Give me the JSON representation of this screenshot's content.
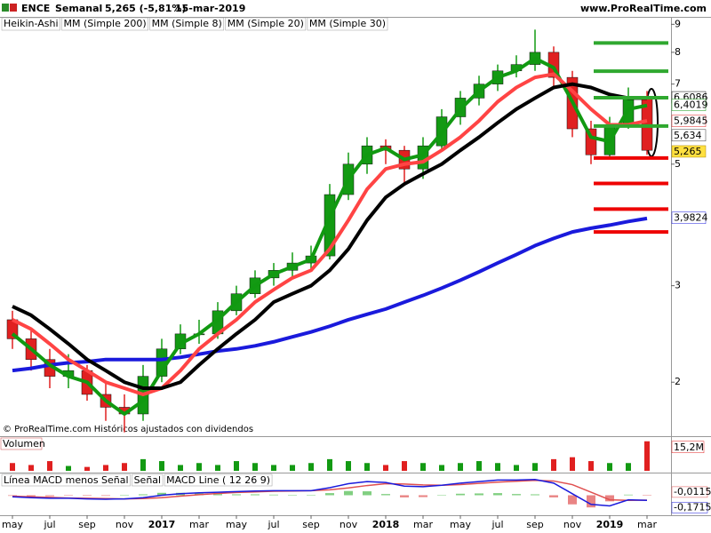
{
  "header": {
    "symbol": "ENCE",
    "period": "Semanal",
    "quote": "5,265 (-5,81%)",
    "date": "15-mar-2019",
    "site": "www.ProRealTime.com"
  },
  "footnote": "© ProRealTime.com  Históricos ajustados con dividendos",
  "chart_data": [
    {
      "type": "candlestick",
      "log_scale": true,
      "ylim": [
        1.6,
        9.25
      ],
      "yticks": [
        2,
        3,
        5,
        7,
        8,
        9
      ],
      "candles": {
        "name": "Heikin-Ashi",
        "up_color": "#139a13",
        "down_color": "#e02020",
        "open": [
          2.6,
          2.4,
          2.2,
          2.05,
          2.1,
          1.9,
          1.8,
          1.75,
          2.05,
          2.3,
          2.45,
          2.45,
          2.7,
          2.9,
          3.1,
          3.2,
          3.3,
          3.4,
          4.4,
          5.0,
          5.4,
          5.3,
          4.9,
          5.4,
          6.1,
          6.6,
          7.0,
          7.4,
          7.6,
          8.0,
          7.2,
          5.8,
          5.2,
          5.9,
          6.6
        ],
        "high": [
          2.7,
          2.5,
          2.3,
          2.25,
          2.15,
          2.0,
          1.9,
          2.15,
          2.4,
          2.55,
          2.6,
          2.8,
          3.0,
          3.2,
          3.3,
          3.45,
          3.55,
          4.6,
          5.25,
          5.6,
          5.55,
          5.4,
          5.6,
          6.3,
          6.8,
          7.25,
          7.6,
          7.9,
          8.8,
          8.2,
          7.4,
          6.0,
          6.1,
          6.9,
          6.8
        ],
        "low": [
          2.3,
          2.1,
          1.95,
          1.95,
          1.85,
          1.7,
          1.62,
          1.7,
          2.0,
          2.25,
          2.35,
          2.4,
          2.65,
          2.85,
          3.0,
          3.1,
          3.2,
          3.35,
          4.3,
          4.8,
          5.0,
          4.6,
          4.7,
          5.3,
          5.9,
          6.4,
          6.8,
          7.2,
          7.4,
          6.9,
          5.6,
          5.0,
          5.1,
          5.8,
          5.2
        ],
        "close": [
          2.4,
          2.2,
          2.05,
          2.1,
          1.9,
          1.8,
          1.75,
          2.05,
          2.3,
          2.45,
          2.45,
          2.7,
          2.9,
          3.1,
          3.2,
          3.3,
          3.4,
          4.4,
          5.0,
          5.4,
          5.3,
          4.9,
          5.4,
          6.1,
          6.6,
          7.0,
          7.4,
          7.6,
          8.0,
          7.2,
          5.8,
          5.2,
          5.9,
          6.6,
          5.3
        ]
      },
      "series": [
        {
          "name": "MM (Simple 200)",
          "color": "#1a1adc",
          "width": 4,
          "values": [
            2.1,
            2.12,
            2.15,
            2.17,
            2.18,
            2.2,
            2.2,
            2.2,
            2.2,
            2.22,
            2.25,
            2.28,
            2.3,
            2.33,
            2.37,
            2.42,
            2.47,
            2.53,
            2.6,
            2.66,
            2.72,
            2.8,
            2.88,
            2.97,
            3.07,
            3.18,
            3.3,
            3.42,
            3.55,
            3.66,
            3.76,
            3.82,
            3.87,
            3.93,
            3.98
          ]
        },
        {
          "name": "MM (Simple 8)",
          "color": "#119911",
          "width": 4,
          "values": [
            2.45,
            2.3,
            2.15,
            2.05,
            2.0,
            1.85,
            1.75,
            1.85,
            2.1,
            2.35,
            2.45,
            2.6,
            2.8,
            3.0,
            3.15,
            3.25,
            3.35,
            4.0,
            4.7,
            5.2,
            5.35,
            5.1,
            5.2,
            5.7,
            6.3,
            6.8,
            7.2,
            7.4,
            7.8,
            7.5,
            6.5,
            5.6,
            5.5,
            6.3,
            6.4
          ]
        },
        {
          "name": "MM (Simple 20)",
          "color": "#ff4444",
          "width": 4,
          "values": [
            2.6,
            2.5,
            2.35,
            2.2,
            2.1,
            2.0,
            1.95,
            1.9,
            1.95,
            2.1,
            2.3,
            2.45,
            2.6,
            2.8,
            2.95,
            3.1,
            3.2,
            3.5,
            3.95,
            4.5,
            4.9,
            5.0,
            5.05,
            5.3,
            5.6,
            6.0,
            6.5,
            6.9,
            7.2,
            7.3,
            6.8,
            6.3,
            5.9,
            5.9,
            6.0
          ]
        },
        {
          "name": "MM (Simple 30)",
          "color": "#000000",
          "width": 4,
          "values": [
            2.75,
            2.65,
            2.5,
            2.35,
            2.2,
            2.1,
            2.0,
            1.95,
            1.95,
            2.0,
            2.15,
            2.3,
            2.45,
            2.6,
            2.8,
            2.9,
            3.0,
            3.2,
            3.5,
            3.95,
            4.35,
            4.6,
            4.8,
            5.0,
            5.3,
            5.6,
            5.95,
            6.3,
            6.6,
            6.9,
            7.0,
            6.9,
            6.7,
            6.6,
            6.6
          ]
        }
      ],
      "levels": [
        {
          "value": 8.32,
          "color": "#2fa82f"
        },
        {
          "value": 7.39,
          "color": "#2fa82f"
        },
        {
          "value": 6.61,
          "color": "#2fa82f"
        },
        {
          "value": 5.87,
          "color": "#2fa82f"
        },
        {
          "value": 5.13,
          "color": "#ee0000"
        },
        {
          "value": 4.61,
          "color": "#ee0000"
        },
        {
          "value": 4.14,
          "color": "#ee0000"
        },
        {
          "value": 3.76,
          "color": "#ee0000"
        }
      ],
      "last_labels": [
        {
          "value": 6.6086,
          "label": "6,6086",
          "color": "#000000"
        },
        {
          "value": 6.4019,
          "label": "6,4019",
          "color": "#119911"
        },
        {
          "value": 5.9845,
          "label": "5,9845",
          "color": "#e02020"
        },
        {
          "value": 5.634,
          "label": "5,634",
          "color": "#333333"
        },
        {
          "value": 5.265,
          "label": "5,265",
          "color": "#000000",
          "background": "#ffe040"
        },
        {
          "value": 3.9824,
          "label": "3,9824",
          "color": "#1a1adc"
        }
      ]
    },
    {
      "type": "volume",
      "name": "Volumen",
      "ylim": [
        0,
        16
      ],
      "up_color": "#139a13",
      "down_color": "#e02020",
      "values": [
        4,
        3,
        5,
        2.5,
        2,
        3,
        4,
        6,
        5,
        3,
        4,
        3,
        5,
        4,
        3,
        3,
        4,
        6,
        5,
        4,
        3,
        5,
        4,
        3,
        4,
        5,
        4,
        3,
        4,
        6,
        7,
        5,
        4,
        4,
        15.2
      ],
      "last_label": {
        "value": 15.2,
        "label": "15,2M"
      }
    },
    {
      "type": "macd",
      "ylim": [
        -0.6,
        0.6
      ],
      "categories": [
        "may",
        null,
        "jul",
        null,
        "sep",
        null,
        "nov",
        null,
        "2017",
        null,
        "mar",
        null,
        "may",
        null,
        "jul",
        null,
        "sep",
        null,
        "nov",
        null,
        "2018",
        null,
        "mar",
        null,
        "may",
        null,
        "jul",
        null,
        "sep",
        null,
        "nov",
        null,
        "2019",
        null,
        "mar"
      ],
      "series": [
        {
          "name": "Línea MACD menos Señal",
          "kind": "histogram",
          "color": "#e05050",
          "values": [
            -0.02,
            -0.03,
            -0.03,
            -0.01,
            -0.02,
            -0.02,
            0,
            0.03,
            0.08,
            0.08,
            0.06,
            0.04,
            0.03,
            0.03,
            0.02,
            0.01,
            0,
            0.07,
            0.14,
            0.13,
            0.04,
            -0.07,
            -0.06,
            0,
            0.05,
            0.06,
            0.07,
            0.04,
            0.03,
            -0.07,
            -0.3,
            -0.4,
            -0.2,
            0.02,
            -0.01
          ]
        },
        {
          "name": "Señal",
          "kind": "line",
          "color": "#e05050",
          "values": [
            -0.03,
            -0.05,
            -0.07,
            -0.09,
            -0.1,
            -0.11,
            -0.12,
            -0.11,
            -0.08,
            -0.03,
            0.02,
            0.06,
            0.09,
            0.11,
            0.13,
            0.14,
            0.15,
            0.18,
            0.24,
            0.32,
            0.38,
            0.37,
            0.34,
            0.33,
            0.35,
            0.39,
            0.43,
            0.46,
            0.49,
            0.47,
            0.35,
            0.1,
            -0.15,
            -0.17,
            -0.16
          ]
        },
        {
          "name": "MACD Line ( 12 26 9)",
          "kind": "line",
          "color": "#1a1adc",
          "values": [
            -0.05,
            -0.08,
            -0.1,
            -0.1,
            -0.12,
            -0.13,
            -0.12,
            -0.08,
            0.0,
            0.05,
            0.08,
            0.1,
            0.12,
            0.14,
            0.15,
            0.15,
            0.15,
            0.25,
            0.38,
            0.45,
            0.42,
            0.3,
            0.28,
            0.33,
            0.4,
            0.45,
            0.5,
            0.5,
            0.52,
            0.4,
            0.05,
            -0.3,
            -0.35,
            -0.15,
            -0.17
          ]
        }
      ],
      "last_labels": [
        {
          "value": -0.0115,
          "label": "-0,0115",
          "color": "#e05050"
        },
        {
          "value": -0.1715,
          "label": "-0,1715",
          "color": "#1a1adc"
        }
      ]
    }
  ]
}
